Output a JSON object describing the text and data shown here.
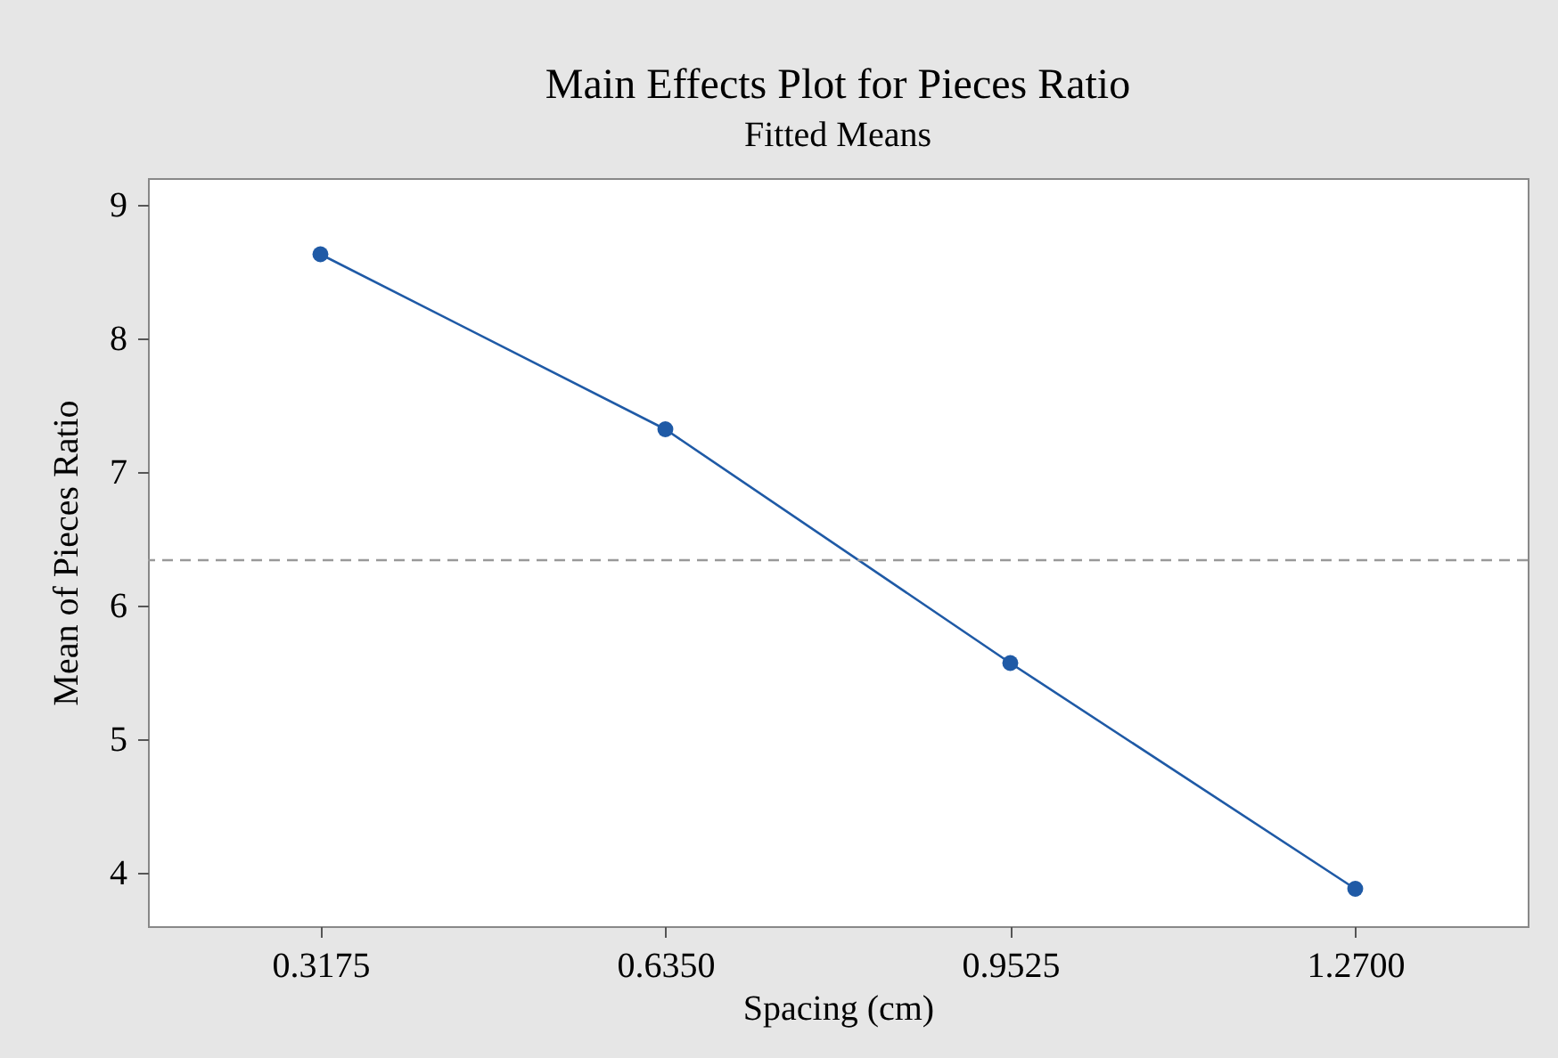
{
  "chart_data": {
    "type": "line",
    "title": "Main Effects Plot for Pieces Ratio",
    "subtitle": "Fitted Means",
    "xlabel": "Spacing (cm)",
    "ylabel": "Mean of Pieces Ratio",
    "categories": [
      "0.3175",
      "0.6350",
      "0.9525",
      "1.2700"
    ],
    "series": [
      {
        "color": "#1f5aa6",
        "values": [
          8.63,
          7.32,
          5.57,
          3.88
        ]
      }
    ],
    "ylim": [
      3.6,
      9.2
    ],
    "yticks": [
      4,
      5,
      6,
      7,
      8,
      9
    ],
    "ref_lines": [
      {
        "axis": "y",
        "value": 6.34,
        "color": "#999999",
        "line_style": "dashed"
      }
    ],
    "marker": "circle",
    "line_style": "solid",
    "grid": false
  }
}
